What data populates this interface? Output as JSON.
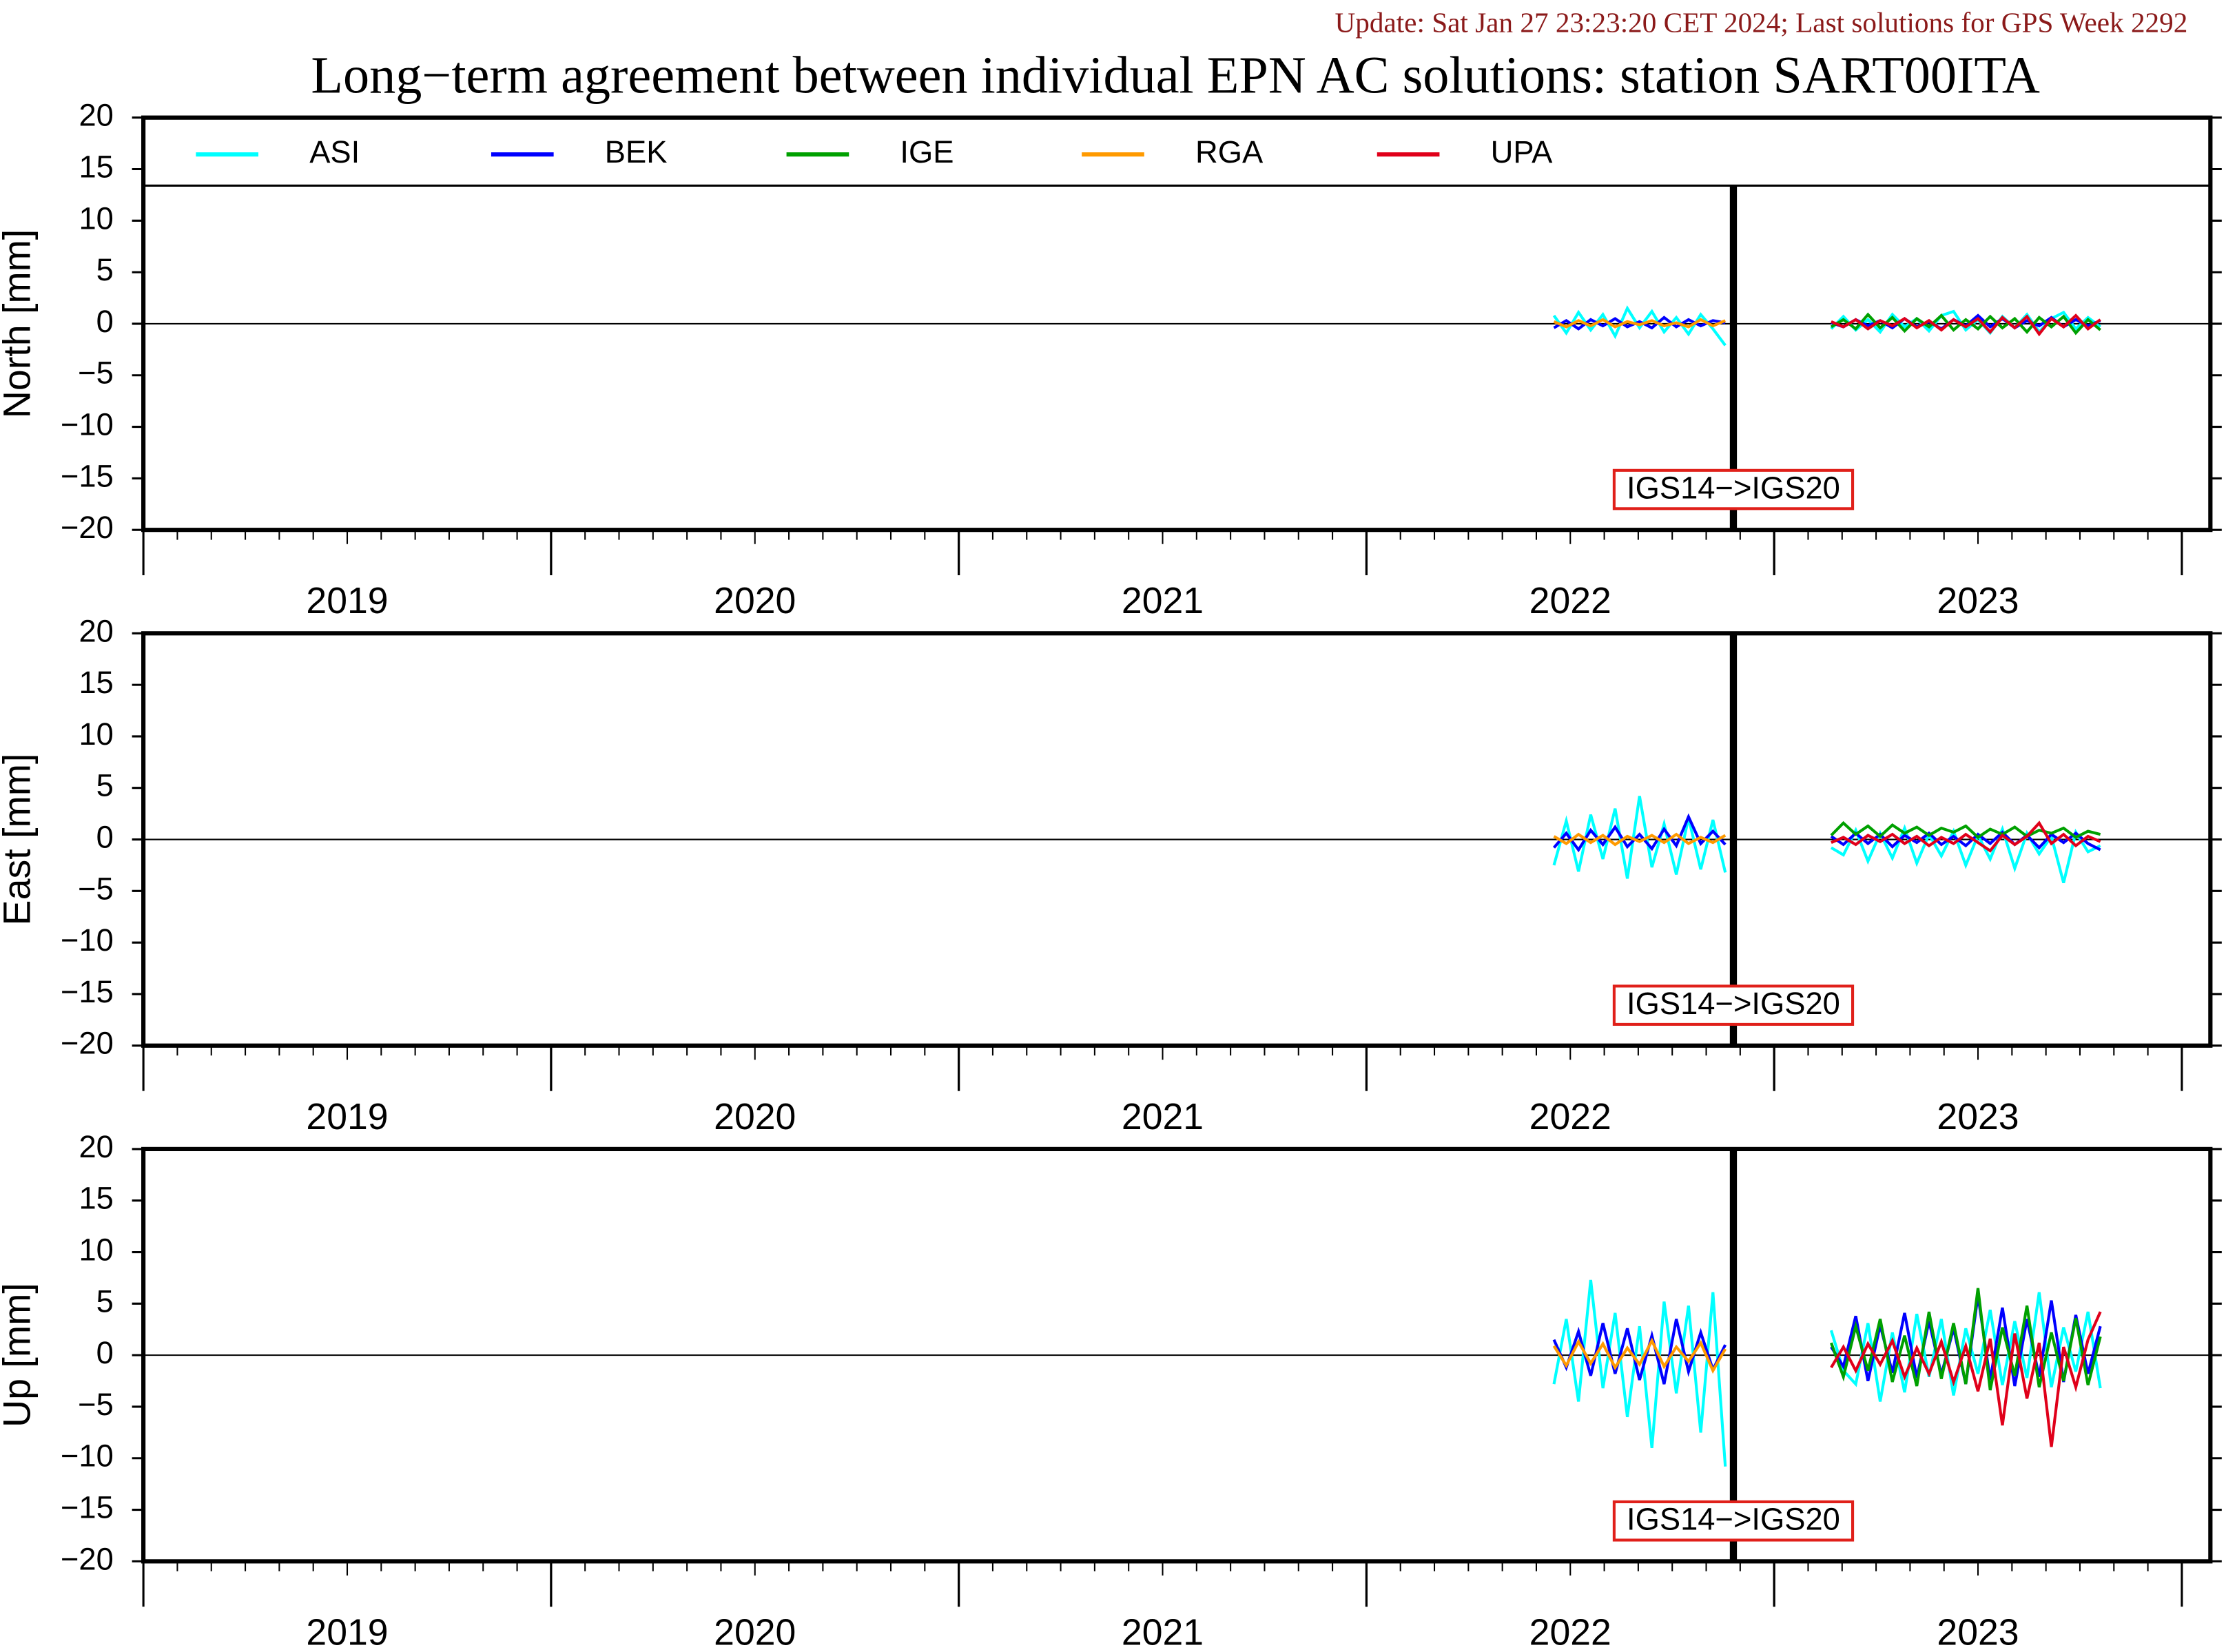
{
  "chart_data": {
    "type": "line",
    "title": "Long−term agreement between individual EPN AC solutions: station SART00ITA",
    "subtitle": "Update: Sat Jan 27 23:23:20 CET 2024; Last solutions for GPS Week 2292",
    "panels": [
      {
        "ylabel": "North [mm]"
      },
      {
        "ylabel": "East [mm]"
      },
      {
        "ylabel": "Up [mm]"
      }
    ],
    "xlim": [
      2019.0,
      2024.07
    ],
    "xticks": [
      {
        "value": 2019.5,
        "label": "2019"
      },
      {
        "value": 2020.5,
        "label": "2020"
      },
      {
        "value": 2021.5,
        "label": "2021"
      },
      {
        "value": 2022.5,
        "label": "2022"
      },
      {
        "value": 2023.5,
        "label": "2023"
      }
    ],
    "ylim": [
      -20,
      20
    ],
    "yticks": [
      {
        "value": -20,
        "label": "−20"
      },
      {
        "value": -15,
        "label": "−15"
      },
      {
        "value": -10,
        "label": "−10"
      },
      {
        "value": -5,
        "label": "−5"
      },
      0,
      5,
      10,
      15,
      20
    ],
    "annotation": {
      "x": 2022.9,
      "label": "IGS14−>IGS20"
    },
    "x": [
      2022.46,
      2022.49,
      2022.52,
      2022.55,
      2022.58,
      2022.61,
      2022.64,
      2022.67,
      2022.7,
      2022.73,
      2022.76,
      2022.79,
      2022.82,
      2022.85,
      2022.88,
      2023.0,
      2023.14,
      2023.17,
      2023.2,
      2023.23,
      2023.26,
      2023.29,
      2023.32,
      2023.35,
      2023.38,
      2023.41,
      2023.44,
      2023.47,
      2023.5,
      2023.53,
      2023.56,
      2023.59,
      2023.62,
      2023.65,
      2023.68,
      2023.71,
      2023.74,
      2023.77,
      2023.8
    ],
    "series": [
      {
        "name": "ASI",
        "color": "#00ffff",
        "values": [
          [
            0.8,
            -0.9,
            1.1,
            -0.6,
            0.9,
            -1.2,
            1.5,
            -0.4,
            1.2,
            -0.8,
            0.6,
            -1.0,
            0.9,
            -0.5,
            -2.1,
            null,
            -0.5,
            0.7,
            -0.6,
            0.4,
            -0.8,
            0.9,
            -0.3,
            0.5,
            -0.7,
            0.8,
            1.2,
            -0.6,
            0.4,
            -0.9,
            0.7,
            -0.4,
            0.9,
            -0.8,
            0.5,
            1.1,
            -0.5,
            0.6,
            -0.3
          ],
          [
            -2.5,
            1.8,
            -3.1,
            2.4,
            -1.9,
            3.0,
            -3.8,
            4.2,
            -2.7,
            1.5,
            -3.4,
            2.1,
            -2.9,
            1.9,
            -3.2,
            null,
            -0.8,
            -1.5,
            0.9,
            -2.1,
            0.6,
            -1.8,
            1.1,
            -2.3,
            0.5,
            -1.6,
            0.8,
            -2.5,
            0.4,
            -1.9,
            1.0,
            -2.8,
            0.6,
            -1.4,
            0.3,
            -4.2,
            0.7,
            -1.2,
            -0.6
          ],
          [
            -2.8,
            3.5,
            -4.5,
            7.3,
            -3.2,
            4.1,
            -6.0,
            2.8,
            -9.0,
            5.2,
            -3.7,
            4.8,
            -7.5,
            6.1,
            -10.8,
            null,
            2.4,
            -1.5,
            -2.8,
            3.1,
            -4.5,
            2.2,
            -3.6,
            4.0,
            -2.1,
            3.5,
            -3.9,
            2.6,
            -1.8,
            4.4,
            -2.9,
            3.3,
            -2.2,
            6.1,
            -3.1,
            2.7,
            -1.6,
            4.2,
            -3.2
          ]
        ]
      },
      {
        "name": "BEK",
        "color": "#0000ff",
        "values": [
          [
            -0.4,
            0.3,
            -0.5,
            0.4,
            -0.2,
            0.5,
            -0.3,
            0.2,
            -0.4,
            0.6,
            -0.3,
            0.4,
            -0.2,
            0.3,
            0.1,
            null,
            0.1,
            -0.3,
            0.4,
            -0.2,
            0.3,
            -0.4,
            0.5,
            -0.3,
            0.2,
            -0.5,
            0.4,
            -0.2,
            0.8,
            -0.3,
            0.5,
            -0.4,
            0.3,
            -0.2,
            0.6,
            -0.3,
            0.4,
            -0.2,
            0.3
          ],
          [
            -0.8,
            0.6,
            -1.0,
            0.9,
            -0.5,
            1.2,
            -0.7,
            0.5,
            -0.9,
            1.0,
            -0.6,
            2.2,
            -0.4,
            0.8,
            -0.5,
            null,
            0.3,
            -0.5,
            0.6,
            -0.4,
            0.5,
            -0.7,
            0.4,
            -0.3,
            0.6,
            -0.5,
            0.3,
            -0.6,
            0.5,
            -0.4,
            0.7,
            -0.5,
            0.4,
            -0.8,
            0.5,
            -0.3,
            0.6,
            -0.4,
            -1.0
          ],
          [
            1.5,
            -1.2,
            2.3,
            -2.0,
            3.1,
            -1.8,
            2.6,
            -2.4,
            1.9,
            -2.8,
            3.5,
            -1.6,
            2.2,
            -1.4,
            1.0,
            null,
            0.8,
            -1.1,
            3.8,
            -2.5,
            2.9,
            -1.7,
            4.1,
            -2.2,
            3.3,
            -1.9,
            2.6,
            -2.8,
            5.8,
            -2.4,
            4.6,
            -3.0,
            3.5,
            -2.1,
            5.3,
            -2.6,
            3.9,
            -1.8,
            2.8
          ]
        ]
      },
      {
        "name": "IGE",
        "color": "#00a000",
        "values": [
          [
            null,
            null,
            null,
            null,
            null,
            null,
            null,
            null,
            null,
            null,
            null,
            null,
            null,
            null,
            null,
            null,
            -0.3,
            0.4,
            -0.5,
            0.9,
            -0.4,
            0.6,
            -0.7,
            0.5,
            -0.3,
            0.8,
            -0.6,
            0.4,
            -0.5,
            0.7,
            -0.4,
            0.5,
            -0.8,
            0.6,
            -0.3,
            0.7,
            -0.9,
            0.4,
            -0.6
          ],
          [
            null,
            null,
            null,
            null,
            null,
            null,
            null,
            null,
            null,
            null,
            null,
            null,
            null,
            null,
            null,
            null,
            0.4,
            1.6,
            0.5,
            1.3,
            0.3,
            1.4,
            0.6,
            1.2,
            0.4,
            1.1,
            0.7,
            1.3,
            0.2,
            1.0,
            0.5,
            1.2,
            0.3,
            0.9,
            0.6,
            1.1,
            0.2,
            0.8,
            0.5
          ],
          [
            null,
            null,
            null,
            null,
            null,
            null,
            null,
            null,
            null,
            null,
            null,
            null,
            null,
            null,
            null,
            null,
            1.2,
            -2.1,
            2.8,
            -1.5,
            3.5,
            -2.6,
            1.9,
            -3.0,
            4.2,
            -2.3,
            3.1,
            -2.8,
            6.5,
            -3.4,
            2.7,
            -2.0,
            4.8,
            -3.1,
            2.2,
            -2.5,
            3.6,
            -2.9,
            1.8
          ]
        ]
      },
      {
        "name": "RGA",
        "color": "#ff9a00",
        "values": [
          [
            0.2,
            -0.3,
            0.3,
            -0.2,
            0.4,
            -0.3,
            0.2,
            -0.1,
            0.3,
            -0.2,
            0.1,
            -0.3,
            0.4,
            -0.2,
            0.3,
            null,
            null,
            null,
            null,
            null,
            null,
            null,
            null,
            null,
            null,
            null,
            null,
            null,
            null,
            null,
            null,
            null,
            null,
            null,
            null,
            null,
            null,
            null,
            null
          ],
          [
            0.3,
            -0.4,
            0.5,
            -0.3,
            0.4,
            -0.5,
            0.3,
            -0.2,
            0.4,
            -0.3,
            0.5,
            -0.4,
            0.2,
            -0.3,
            0.4,
            null,
            null,
            null,
            null,
            null,
            null,
            null,
            null,
            null,
            null,
            null,
            null,
            null,
            null,
            null,
            null,
            null,
            null,
            null,
            null,
            null,
            null,
            null,
            null
          ],
          [
            0.9,
            -1.0,
            1.3,
            -0.8,
            1.1,
            -1.2,
            0.7,
            -0.9,
            1.4,
            -1.1,
            0.8,
            -0.6,
            1.2,
            -1.5,
            0.6,
            null,
            null,
            null,
            null,
            null,
            null,
            null,
            null,
            null,
            null,
            null,
            null,
            null,
            null,
            null,
            null,
            null,
            null,
            null,
            null,
            null,
            null,
            null,
            null
          ]
        ]
      },
      {
        "name": "UPA",
        "color": "#e0001a",
        "values": [
          [
            null,
            null,
            null,
            null,
            null,
            null,
            null,
            null,
            null,
            null,
            null,
            null,
            null,
            null,
            null,
            null,
            0.2,
            -0.3,
            0.4,
            -0.5,
            0.3,
            -0.2,
            0.5,
            -0.4,
            0.3,
            -0.6,
            0.4,
            -0.3,
            0.5,
            -0.8,
            0.6,
            -0.4,
            0.7,
            -1.0,
            0.5,
            -0.3,
            0.8,
            -0.5,
            0.4
          ],
          [
            null,
            null,
            null,
            null,
            null,
            null,
            null,
            null,
            null,
            null,
            null,
            null,
            null,
            null,
            null,
            null,
            -0.3,
            0.2,
            -0.5,
            0.4,
            -0.2,
            0.5,
            -0.4,
            0.3,
            -0.6,
            0.2,
            -0.4,
            0.5,
            -0.3,
            -1.1,
            0.4,
            -0.5,
            0.3,
            1.6,
            -0.4,
            0.5,
            -0.6,
            0.3,
            -0.2
          ],
          [
            null,
            null,
            null,
            null,
            null,
            null,
            null,
            null,
            null,
            null,
            null,
            null,
            null,
            null,
            null,
            null,
            -1.2,
            0.8,
            -1.5,
            1.1,
            -0.9,
            1.4,
            -2.1,
            0.7,
            -1.8,
            1.3,
            -2.6,
            0.9,
            -3.5,
            1.6,
            -6.8,
            2.1,
            -4.2,
            1.2,
            -8.9,
            0.8,
            -3.1,
            1.5,
            4.2
          ]
        ]
      }
    ]
  }
}
